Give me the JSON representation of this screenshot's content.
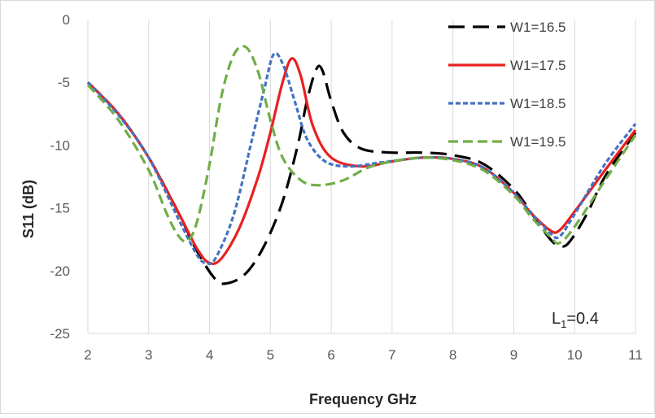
{
  "chart_data": {
    "type": "line",
    "title": "",
    "xlabel": "Frequency GHz",
    "ylabel": "S11 (dB)",
    "xlim": [
      2,
      11
    ],
    "ylim": [
      -25,
      0
    ],
    "x_ticks": [
      2,
      3,
      4,
      5,
      6,
      7,
      8,
      9,
      10,
      11
    ],
    "y_ticks": [
      0,
      -5,
      -10,
      -15,
      -20,
      -25
    ],
    "grid": "vertical",
    "legend_position": "top-right",
    "annotation": {
      "main": "L",
      "sub": "1",
      "rest": "=0.4"
    },
    "series": [
      {
        "name": "W1=16.5",
        "color": "#000000",
        "dash": "long-dash",
        "x": [
          2,
          2.5,
          3,
          3.5,
          3.8,
          4.1,
          4.3,
          4.6,
          4.9,
          5.2,
          5.45,
          5.6,
          5.75,
          5.85,
          6.0,
          6.2,
          6.5,
          7.0,
          7.5,
          8.0,
          8.5,
          9.0,
          9.3,
          9.6,
          9.75,
          9.9,
          10.2,
          10.5,
          11
        ],
        "y": [
          -5.0,
          -7.5,
          -11.0,
          -15.5,
          -18.5,
          -20.7,
          -21.0,
          -20.2,
          -18.0,
          -14.5,
          -10.0,
          -6.5,
          -4.0,
          -4.0,
          -6.5,
          -9.0,
          -10.3,
          -10.6,
          -10.6,
          -10.8,
          -11.5,
          -13.5,
          -15.5,
          -17.5,
          -18.0,
          -17.8,
          -15.5,
          -12.5,
          -9.0
        ]
      },
      {
        "name": "W1=17.5",
        "color": "#e8201f",
        "dash": "solid",
        "x": [
          2,
          2.5,
          3,
          3.5,
          3.8,
          4.0,
          4.2,
          4.5,
          4.8,
          5.0,
          5.2,
          5.35,
          5.5,
          5.7,
          6.0,
          6.5,
          7.0,
          7.5,
          8.0,
          8.5,
          9.0,
          9.3,
          9.6,
          9.75,
          10.0,
          10.5,
          11
        ],
        "y": [
          -5.0,
          -7.5,
          -11.0,
          -15.5,
          -18.3,
          -19.4,
          -19.0,
          -16.5,
          -12.5,
          -9.0,
          -5.0,
          -3.1,
          -4.5,
          -8.5,
          -11.0,
          -11.7,
          -11.3,
          -11.0,
          -11.1,
          -11.8,
          -13.8,
          -15.5,
          -16.8,
          -16.8,
          -15.3,
          -12.0,
          -8.8
        ]
      },
      {
        "name": "W1=18.5",
        "color": "#4472c4",
        "dash": "short-dash",
        "x": [
          2,
          2.5,
          3,
          3.5,
          3.8,
          3.95,
          4.1,
          4.4,
          4.7,
          4.9,
          5.05,
          5.2,
          5.4,
          5.6,
          5.9,
          6.3,
          6.8,
          7.5,
          8.0,
          8.5,
          9.0,
          9.3,
          9.6,
          9.75,
          10.0,
          10.5,
          11
        ],
        "y": [
          -5.0,
          -7.6,
          -11.0,
          -16.0,
          -18.8,
          -19.4,
          -19.0,
          -15.5,
          -9.5,
          -5.5,
          -2.8,
          -3.5,
          -6.5,
          -9.5,
          -11.3,
          -11.7,
          -11.4,
          -11.0,
          -11.1,
          -11.8,
          -13.8,
          -15.5,
          -17.0,
          -17.3,
          -15.5,
          -11.5,
          -8.3
        ]
      },
      {
        "name": "W1=19.5",
        "color": "#70ad47",
        "dash": "dash",
        "x": [
          2,
          2.5,
          3,
          3.3,
          3.5,
          3.65,
          3.8,
          4.0,
          4.2,
          4.4,
          4.6,
          4.8,
          5.0,
          5.2,
          5.5,
          5.8,
          6.2,
          6.6,
          7.0,
          7.5,
          8.0,
          8.5,
          9.0,
          9.3,
          9.6,
          9.75,
          10.0,
          10.5,
          11
        ],
        "y": [
          -5.2,
          -8.0,
          -12.0,
          -15.5,
          -17.3,
          -17.6,
          -16.0,
          -11.5,
          -6.0,
          -2.8,
          -2.2,
          -4.2,
          -8.0,
          -11.0,
          -12.8,
          -13.2,
          -12.8,
          -11.8,
          -11.3,
          -11.0,
          -11.2,
          -12.0,
          -14.0,
          -15.8,
          -17.3,
          -17.8,
          -16.5,
          -12.8,
          -9.2
        ]
      }
    ]
  }
}
